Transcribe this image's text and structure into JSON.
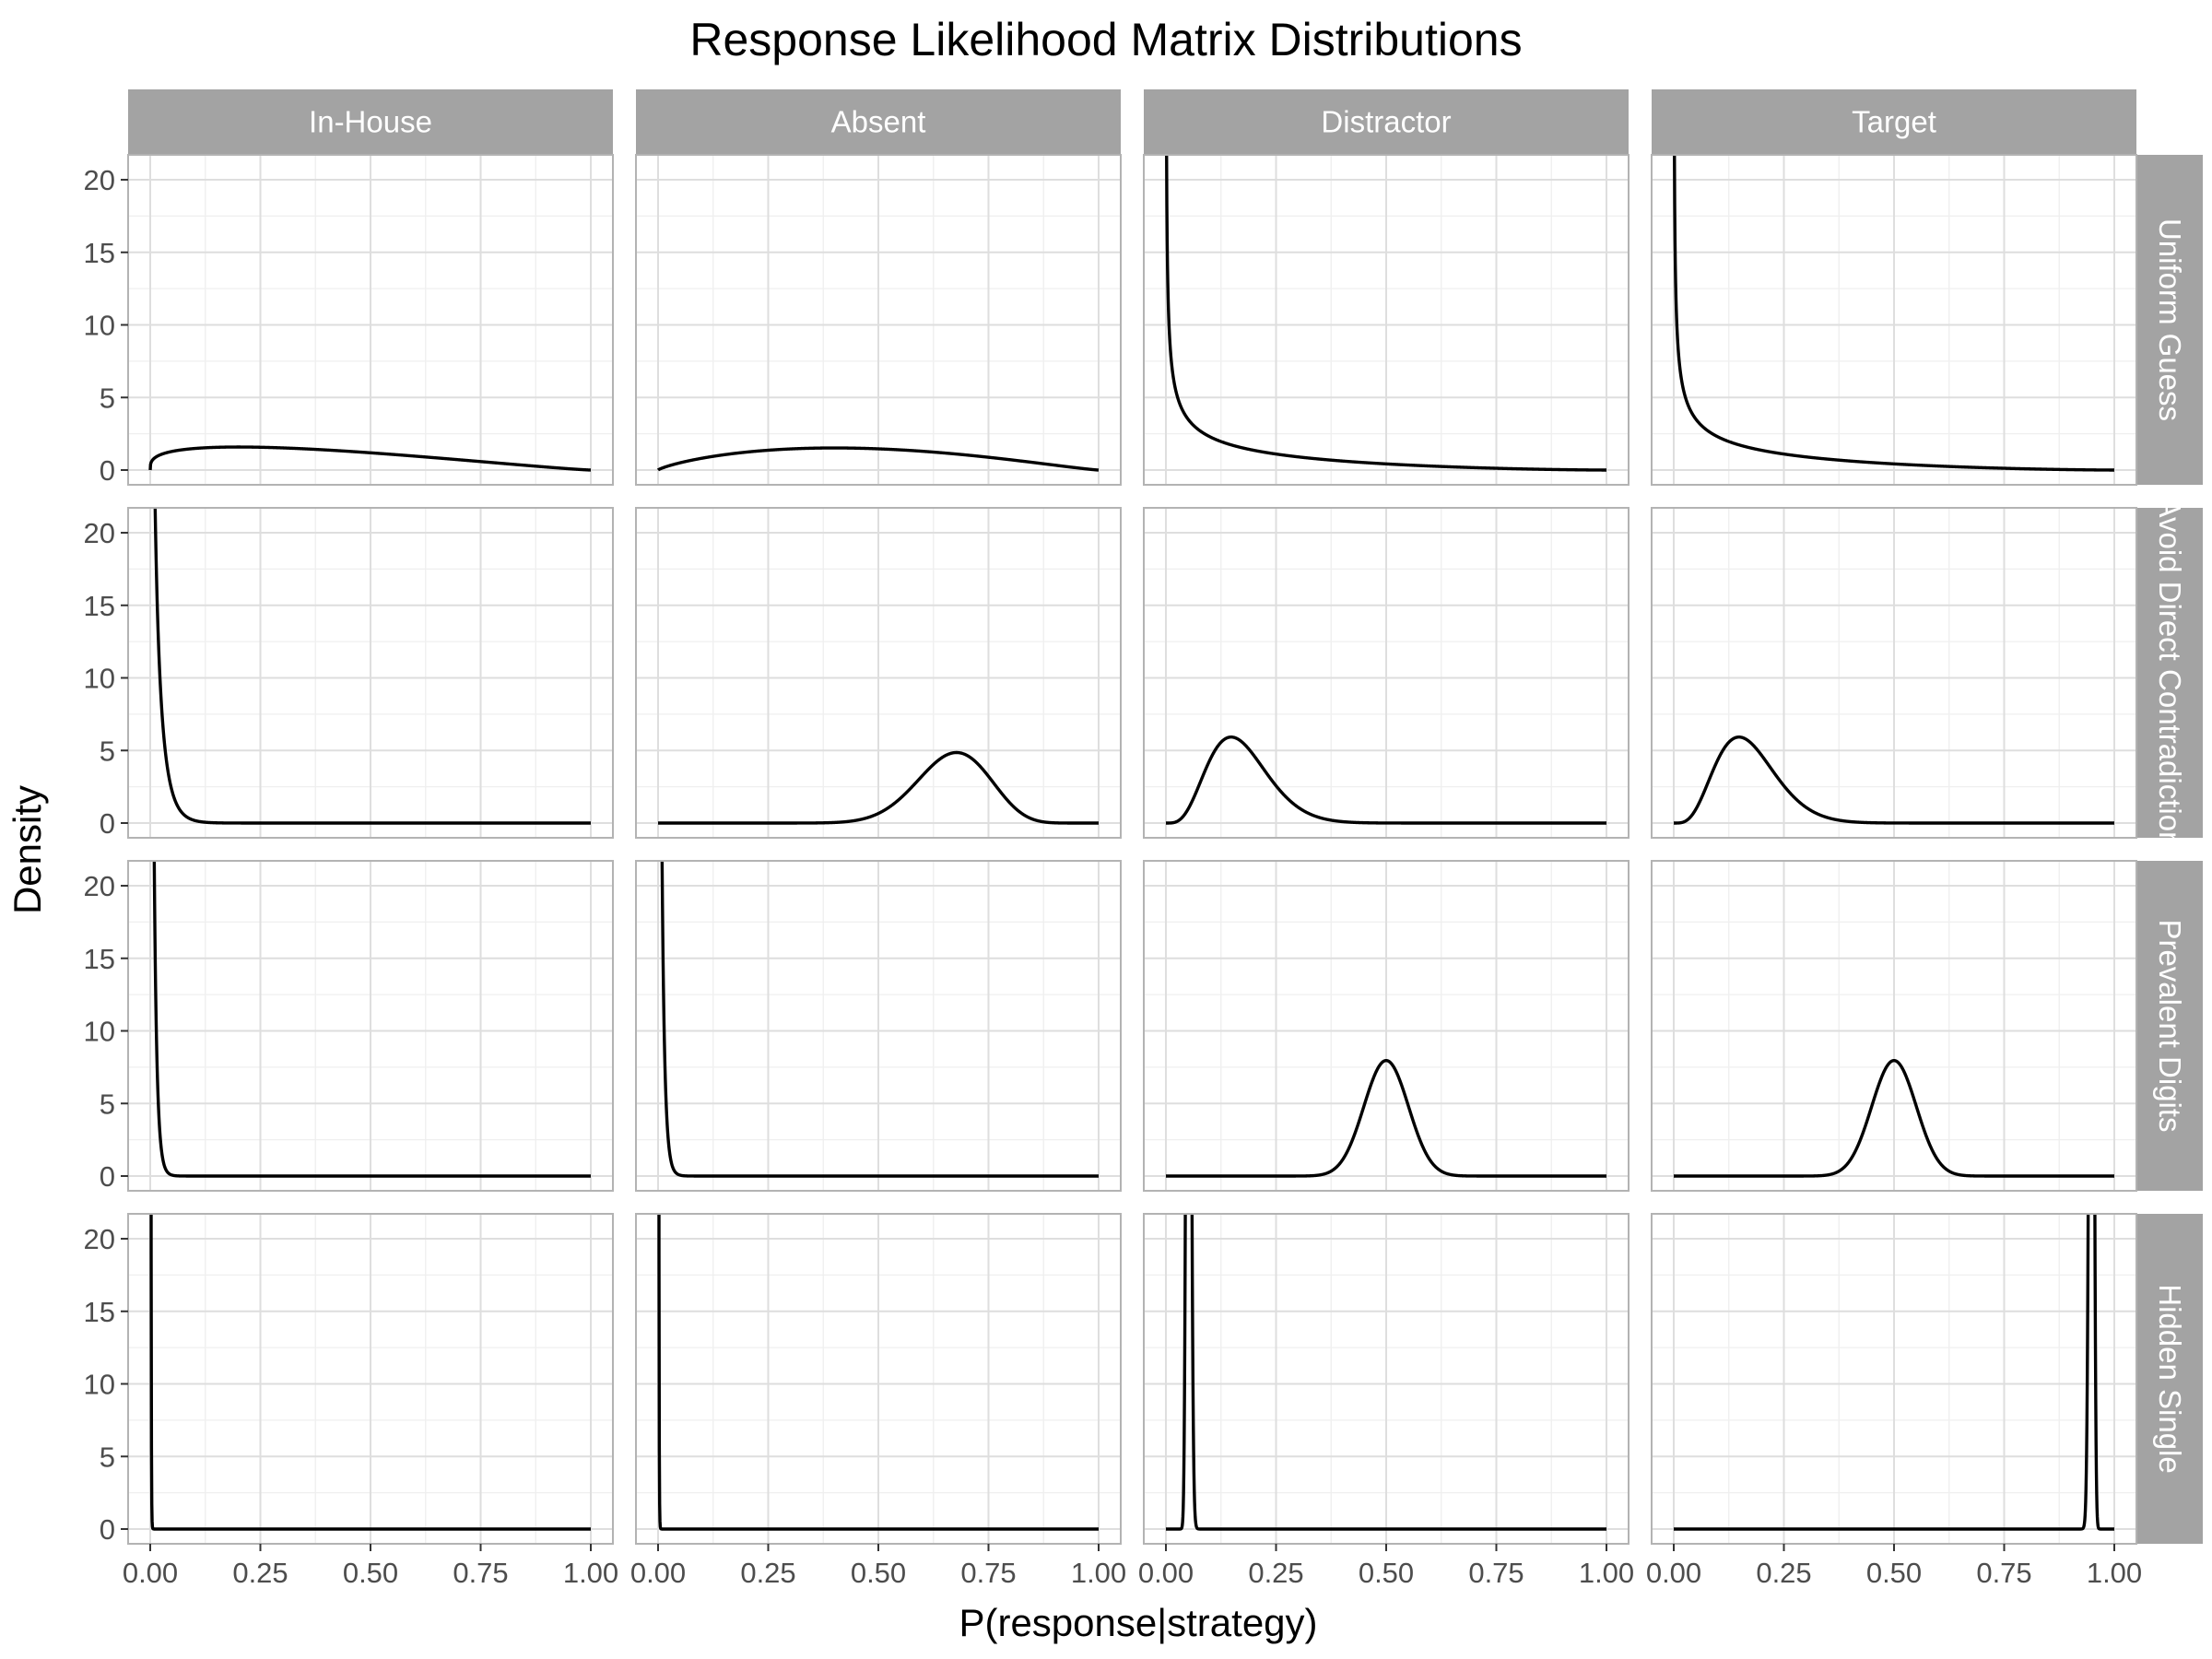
{
  "chart_data": {
    "type": "line",
    "title": "Response Likelihood Matrix Distributions",
    "xlabel": "P(response|strategy)",
    "ylabel": "Density",
    "xlim": [
      0,
      1
    ],
    "ylim": [
      0,
      20
    ],
    "x_ticks": [
      "0.00",
      "0.25",
      "0.50",
      "0.75",
      "1.00"
    ],
    "y_ticks": [
      "0",
      "5",
      "10",
      "15",
      "20"
    ],
    "columns": [
      "In-House",
      "Absent",
      "Distractor",
      "Target"
    ],
    "rows": [
      "Uniform Guess",
      "Avoid Direct Contradiction",
      "Prevalent Digits",
      "Hidden Single"
    ],
    "grid": true,
    "colors": {
      "strip": "#a3a3a3",
      "panel_border": "#b3b3b3",
      "grid_major": "#dedede",
      "grid_minor": "#efefef",
      "line": "#000000",
      "tick_text": "#4d4d4d"
    },
    "panels": [
      {
        "row": "Uniform Guess",
        "column": "In-House",
        "distribution": "beta",
        "alpha": 1.3,
        "beta": 2.2
      },
      {
        "row": "Uniform Guess",
        "column": "Absent",
        "distribution": "beta",
        "alpha": 1.8,
        "beta": 2.2
      },
      {
        "row": "Uniform Guess",
        "column": "Distractor",
        "distribution": "beta",
        "alpha": 0.5,
        "beta": 2.5
      },
      {
        "row": "Uniform Guess",
        "column": "Target",
        "distribution": "beta",
        "alpha": 0.5,
        "beta": 2.5
      },
      {
        "row": "Avoid Direct Contradiction",
        "column": "In-House",
        "distribution": "beta",
        "alpha": 0.5,
        "beta": 40
      },
      {
        "row": "Avoid Direct Contradiction",
        "column": "Absent",
        "distribution": "beta",
        "alpha": 22,
        "beta": 11
      },
      {
        "row": "Avoid Direct Contradiction",
        "column": "Distractor",
        "distribution": "beta",
        "alpha": 5,
        "beta": 24
      },
      {
        "row": "Avoid Direct Contradiction",
        "column": "Target",
        "distribution": "beta",
        "alpha": 5,
        "beta": 24
      },
      {
        "row": "Prevalent Digits",
        "column": "In-House",
        "distribution": "beta",
        "alpha": 0.5,
        "beta": 120
      },
      {
        "row": "Prevalent Digits",
        "column": "Absent",
        "distribution": "beta",
        "alpha": 0.5,
        "beta": 120
      },
      {
        "row": "Prevalent Digits",
        "column": "Distractor",
        "distribution": "beta",
        "alpha": 50,
        "beta": 50
      },
      {
        "row": "Prevalent Digits",
        "column": "Target",
        "distribution": "beta",
        "alpha": 50,
        "beta": 50
      },
      {
        "row": "Hidden Single",
        "column": "In-House",
        "distribution": "beta",
        "alpha": 0.5,
        "beta": 1500
      },
      {
        "row": "Hidden Single",
        "column": "Absent",
        "distribution": "beta",
        "alpha": 0.5,
        "beta": 1500
      },
      {
        "row": "Hidden Single",
        "column": "Distractor",
        "distribution": "beta",
        "alpha": 120,
        "beta": 2200
      },
      {
        "row": "Hidden Single",
        "column": "Target",
        "distribution": "beta",
        "alpha": 2200,
        "beta": 120
      }
    ]
  }
}
